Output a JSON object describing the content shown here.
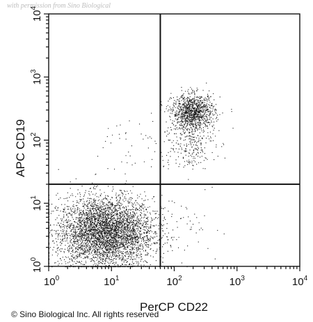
{
  "watermark": "with permission from Sino Biological",
  "copyright": "© Sino Biological Inc. All rights reserved",
  "chart_data": {
    "type": "scatter",
    "subtype": "flow-cytometry-dot-plot",
    "xlabel": "PerCP CD22",
    "ylabel": "APC CD19",
    "xscale": "log",
    "yscale": "log",
    "xlim": [
      1,
      10000
    ],
    "ylim": [
      1,
      10000
    ],
    "x_ticks": [
      {
        "base": "10",
        "exp": "0"
      },
      {
        "base": "10",
        "exp": "1"
      },
      {
        "base": "10",
        "exp": "2"
      },
      {
        "base": "10",
        "exp": "3"
      },
      {
        "base": "10",
        "exp": "4"
      }
    ],
    "y_ticks": [
      {
        "base": "10",
        "exp": "0"
      },
      {
        "base": "10",
        "exp": "1"
      },
      {
        "base": "10",
        "exp": "2"
      },
      {
        "base": "10",
        "exp": "3"
      },
      {
        "base": "10",
        "exp": "4"
      }
    ],
    "gates": {
      "x": 60,
      "y": 20
    },
    "grid": false,
    "populations": [
      {
        "quadrant": "lower-left",
        "center_x": 8,
        "center_y": 3.5,
        "spread_x_decades": 0.38,
        "spread_y_decades": 0.28,
        "count": 4200
      },
      {
        "quadrant": "upper-right",
        "center_x": 200,
        "center_y": 280,
        "spread_x_decades": 0.17,
        "spread_y_decades": 0.14,
        "count": 1100
      },
      {
        "quadrant": "upper-right",
        "center_x": 160,
        "center_y": 90,
        "spread_x_decades": 0.22,
        "spread_y_decades": 0.2,
        "count": 260
      },
      {
        "quadrant": "upper-left",
        "center_x": 20,
        "center_y": 80,
        "spread_x_decades": 0.25,
        "spread_y_decades": 0.3,
        "count": 40
      },
      {
        "quadrant": "lower-right",
        "center_x": 200,
        "center_y": 5,
        "spread_x_decades": 0.3,
        "spread_y_decades": 0.3,
        "count": 45
      }
    ],
    "colors": {
      "points": "#1a1a1a",
      "axes": "#111111",
      "gates": "#111111"
    }
  }
}
